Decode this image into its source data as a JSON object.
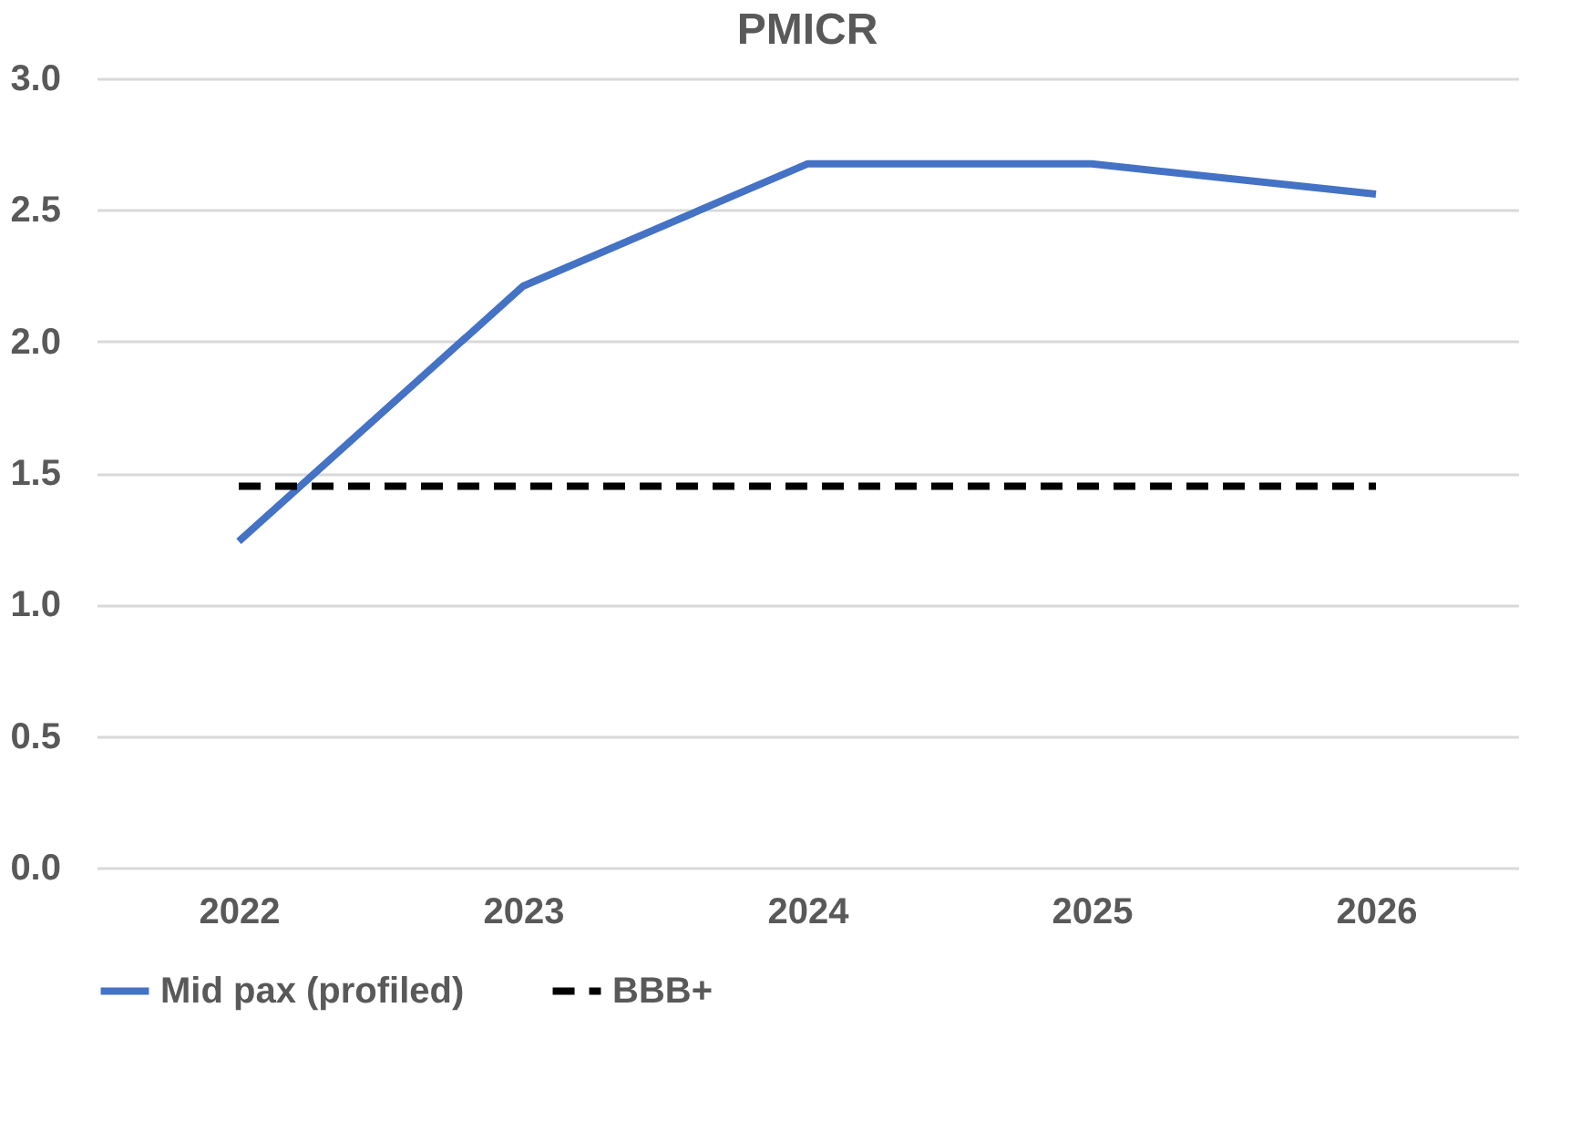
{
  "chart_data": {
    "type": "line",
    "title": "PMICR",
    "categories": [
      "2022",
      "2023",
      "2024",
      "2025",
      "2026"
    ],
    "series": [
      {
        "name": "Mid pax (profiled)",
        "color": "#4472c4",
        "line_style": "solid",
        "values": [
          1.24,
          2.21,
          2.675,
          2.675,
          2.56
        ]
      },
      {
        "name": "BBB+",
        "color": "#000000",
        "line_style": "dashed",
        "values": [
          1.45,
          1.45,
          1.45,
          1.45,
          1.45
        ]
      }
    ],
    "ylim": [
      0,
      3
    ],
    "yticks": [
      {
        "value": 0,
        "label": "0.0"
      },
      0.5,
      {
        "value": 1,
        "label": "1.0"
      },
      1.5,
      {
        "value": 2,
        "label": "2.0"
      },
      2.5,
      {
        "value": 3,
        "label": "3.0"
      }
    ],
    "grid": "y",
    "legend": "bottom",
    "marker": "none"
  }
}
